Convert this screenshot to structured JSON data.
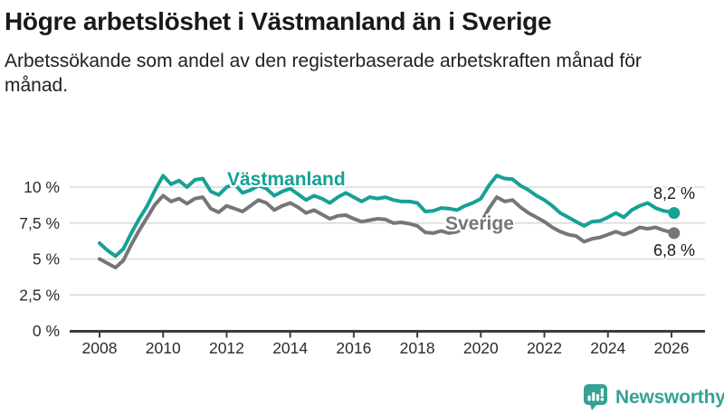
{
  "page": {
    "title": "Högre arbetslöshet i Västmanland än i Sverige",
    "subtitle": "Arbetssökande som andel av den registerbaserade arbetskraften månad för månad."
  },
  "chart_data": {
    "type": "line",
    "title": "Högre arbetslöshet i Västmanland än i Sverige",
    "subtitle": "Arbetssökande som andel av den registerbaserade arbetskraften månad för månad.",
    "unit": "%",
    "grid": true,
    "legend_position": "inline-labels",
    "xlim": [
      2007.9,
      2027.0
    ],
    "ylim": [
      0,
      11.3
    ],
    "x": [
      2008,
      2008.25,
      2008.5,
      2008.75,
      2009,
      2009.25,
      2009.5,
      2009.75,
      2010,
      2010.25,
      2010.5,
      2010.75,
      2011,
      2011.25,
      2011.5,
      2011.75,
      2012,
      2012.25,
      2012.5,
      2012.75,
      2013,
      2013.25,
      2013.5,
      2013.75,
      2014,
      2014.25,
      2014.5,
      2014.75,
      2015,
      2015.25,
      2015.5,
      2015.75,
      2016,
      2016.25,
      2016.5,
      2016.75,
      2017,
      2017.25,
      2017.5,
      2017.75,
      2018,
      2018.25,
      2018.5,
      2018.75,
      2019,
      2019.25,
      2019.5,
      2019.75,
      2020,
      2020.25,
      2020.5,
      2020.75,
      2021,
      2021.25,
      2021.5,
      2021.75,
      2022,
      2022.25,
      2022.5,
      2022.75,
      2023,
      2023.25,
      2023.5,
      2023.75,
      2024,
      2024.25,
      2024.5,
      2024.75,
      2025,
      2025.25,
      2025.5,
      2025.75,
      2026,
      2026.08
    ],
    "series": [
      {
        "name": "Västmanland",
        "color": "#16A195",
        "end_label": "8,2 %",
        "end_value": 8.2,
        "values": [
          6.1,
          5.6,
          5.2,
          5.7,
          6.8,
          7.8,
          8.7,
          9.8,
          10.8,
          10.2,
          10.45,
          10.0,
          10.5,
          10.6,
          9.7,
          9.45,
          10.0,
          10.2,
          9.6,
          9.8,
          10.1,
          9.9,
          9.4,
          9.7,
          9.9,
          9.5,
          9.1,
          9.4,
          9.2,
          8.9,
          9.3,
          9.6,
          9.3,
          9.0,
          9.3,
          9.2,
          9.3,
          9.1,
          9.0,
          9.0,
          8.9,
          8.3,
          8.35,
          8.55,
          8.5,
          8.4,
          8.7,
          8.9,
          9.2,
          10.1,
          10.8,
          10.6,
          10.55,
          10.1,
          9.8,
          9.4,
          9.1,
          8.7,
          8.2,
          7.9,
          7.6,
          7.3,
          7.6,
          7.65,
          7.9,
          8.2,
          7.9,
          8.4,
          8.7,
          8.9,
          8.55,
          8.35,
          8.25,
          8.2
        ]
      },
      {
        "name": "Sverige",
        "color": "#767676",
        "end_label": "6,8 %",
        "end_value": 6.8,
        "values": [
          5.0,
          4.7,
          4.4,
          4.9,
          6.0,
          7.0,
          7.9,
          8.8,
          9.4,
          9.0,
          9.2,
          8.85,
          9.2,
          9.3,
          8.5,
          8.25,
          8.7,
          8.5,
          8.3,
          8.7,
          9.1,
          8.9,
          8.4,
          8.7,
          8.9,
          8.6,
          8.2,
          8.4,
          8.1,
          7.8,
          8.0,
          8.05,
          7.8,
          7.6,
          7.7,
          7.8,
          7.75,
          7.5,
          7.55,
          7.45,
          7.3,
          6.85,
          6.8,
          6.95,
          6.8,
          6.9,
          7.2,
          7.3,
          7.5,
          8.5,
          9.3,
          9.0,
          9.1,
          8.6,
          8.2,
          7.9,
          7.6,
          7.2,
          6.9,
          6.7,
          6.6,
          6.2,
          6.4,
          6.5,
          6.7,
          6.9,
          6.7,
          6.9,
          7.2,
          7.1,
          7.2,
          7.0,
          6.85,
          6.8
        ]
      }
    ],
    "x_ticks": [
      {
        "v": 2008,
        "label": "2008"
      },
      {
        "v": 2010,
        "label": "2010"
      },
      {
        "v": 2012,
        "label": "2012"
      },
      {
        "v": 2014,
        "label": "2014"
      },
      {
        "v": 2016,
        "label": "2016"
      },
      {
        "v": 2018,
        "label": "2018"
      },
      {
        "v": 2020,
        "label": "2020"
      },
      {
        "v": 2022,
        "label": "2022"
      },
      {
        "v": 2024,
        "label": "2024"
      },
      {
        "v": 2026,
        "label": "2026"
      }
    ],
    "y_ticks": [
      {
        "v": 0,
        "label": "0 %"
      },
      {
        "v": 2.5,
        "label": "2,5 %"
      },
      {
        "v": 5,
        "label": "5 %"
      },
      {
        "v": 7.5,
        "label": "7,5 %"
      },
      {
        "v": 10,
        "label": "10 %"
      }
    ]
  },
  "logo": {
    "name": "Newsworthy",
    "icon": "bar-chart-speech-bubble-icon",
    "color": "#35A294"
  },
  "colors": {
    "background": "#FFFFFF",
    "title": "#191919",
    "subtitle": "#212121",
    "axis": "#3C3C3C",
    "axis_labels": "#2B2B2B",
    "gridline": "#D8D8D8",
    "annotation": "#191919"
  }
}
